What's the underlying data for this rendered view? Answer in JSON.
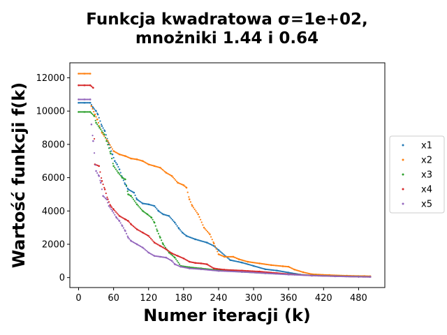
{
  "chart_data": {
    "type": "scatter",
    "title_lines": [
      "Funkcja kwadratowa σ=1e+02,",
      "mnożniki 1.44 i 0.64"
    ],
    "xlabel": "Numer iteracji (k)",
    "ylabel": "Wartość funkcji f(k)",
    "xlim": [
      -15,
      525
    ],
    "ylim": [
      -600,
      12900
    ],
    "xticks": [
      0,
      60,
      120,
      180,
      240,
      300,
      360,
      420,
      480
    ],
    "yticks": [
      0,
      2000,
      4000,
      6000,
      8000,
      10000,
      12000
    ],
    "grid": false,
    "legend_position": "right-center",
    "series": [
      {
        "name": "x1",
        "color": "#1f77b4",
        "points": [
          [
            0,
            10500
          ],
          [
            10,
            10500
          ],
          [
            20,
            10500
          ],
          [
            25,
            10200
          ],
          [
            30,
            10000
          ],
          [
            33,
            9800
          ],
          [
            40,
            9100
          ],
          [
            45,
            8800
          ],
          [
            52,
            8000
          ],
          [
            58,
            7400
          ],
          [
            62,
            7000
          ],
          [
            66,
            6800
          ],
          [
            70,
            6500
          ],
          [
            75,
            6000
          ],
          [
            80,
            5600
          ],
          [
            85,
            5300
          ],
          [
            95,
            5100
          ],
          [
            100,
            4700
          ],
          [
            110,
            4450
          ],
          [
            120,
            4400
          ],
          [
            130,
            4300
          ],
          [
            137,
            4000
          ],
          [
            145,
            3800
          ],
          [
            155,
            3700
          ],
          [
            165,
            3300
          ],
          [
            172,
            2950
          ],
          [
            178,
            2700
          ],
          [
            185,
            2500
          ],
          [
            200,
            2300
          ],
          [
            220,
            2100
          ],
          [
            232,
            1900
          ],
          [
            240,
            1650
          ],
          [
            260,
            1050
          ],
          [
            280,
            900
          ],
          [
            300,
            700
          ],
          [
            320,
            500
          ],
          [
            340,
            420
          ],
          [
            360,
            300
          ],
          [
            380,
            180
          ],
          [
            400,
            120
          ],
          [
            440,
            80
          ],
          [
            480,
            50
          ],
          [
            500,
            40
          ]
        ]
      },
      {
        "name": "x2",
        "color": "#ff7f0e",
        "points": [
          [
            0,
            12250
          ],
          [
            10,
            12250
          ],
          [
            20,
            12250
          ],
          [
            22,
            10300
          ],
          [
            28,
            9800
          ],
          [
            32,
            9500
          ],
          [
            40,
            8700
          ],
          [
            50,
            8200
          ],
          [
            60,
            7600
          ],
          [
            70,
            7400
          ],
          [
            80,
            7300
          ],
          [
            90,
            7150
          ],
          [
            100,
            7100
          ],
          [
            110,
            7000
          ],
          [
            120,
            6800
          ],
          [
            130,
            6700
          ],
          [
            140,
            6600
          ],
          [
            150,
            6300
          ],
          [
            160,
            6100
          ],
          [
            170,
            5700
          ],
          [
            180,
            5550
          ],
          [
            185,
            5400
          ],
          [
            190,
            4700
          ],
          [
            195,
            4300
          ],
          [
            205,
            3800
          ],
          [
            215,
            3000
          ],
          [
            225,
            2600
          ],
          [
            232,
            2050
          ],
          [
            240,
            1400
          ],
          [
            250,
            1250
          ],
          [
            265,
            1250
          ],
          [
            275,
            1100
          ],
          [
            290,
            950
          ],
          [
            310,
            850
          ],
          [
            330,
            750
          ],
          [
            350,
            680
          ],
          [
            360,
            650
          ],
          [
            370,
            480
          ],
          [
            385,
            320
          ],
          [
            400,
            200
          ],
          [
            430,
            150
          ],
          [
            460,
            110
          ],
          [
            490,
            90
          ],
          [
            500,
            80
          ]
        ]
      },
      {
        "name": "x3",
        "color": "#2ca02c",
        "points": [
          [
            0,
            9950
          ],
          [
            10,
            9950
          ],
          [
            20,
            9950
          ],
          [
            27,
            9700
          ],
          [
            30,
            9300
          ],
          [
            36,
            9000
          ],
          [
            44,
            8600
          ],
          [
            48,
            8200
          ],
          [
            55,
            7450
          ],
          [
            60,
            6700
          ],
          [
            68,
            6300
          ],
          [
            75,
            6000
          ],
          [
            80,
            5900
          ],
          [
            85,
            5000
          ],
          [
            90,
            4900
          ],
          [
            100,
            4400
          ],
          [
            110,
            4000
          ],
          [
            118,
            3800
          ],
          [
            125,
            3600
          ],
          [
            130,
            3300
          ],
          [
            135,
            2800
          ],
          [
            140,
            2400
          ],
          [
            145,
            2000
          ],
          [
            155,
            1500
          ],
          [
            165,
            1200
          ],
          [
            175,
            700
          ],
          [
            190,
            620
          ],
          [
            210,
            550
          ],
          [
            240,
            440
          ],
          [
            280,
            340
          ],
          [
            320,
            260
          ],
          [
            360,
            190
          ],
          [
            400,
            130
          ],
          [
            440,
            90
          ],
          [
            480,
            60
          ],
          [
            500,
            50
          ]
        ]
      },
      {
        "name": "x4",
        "color": "#d62728",
        "points": [
          [
            0,
            11550
          ],
          [
            10,
            11550
          ],
          [
            20,
            11550
          ],
          [
            25,
            11400
          ],
          [
            28,
            6800
          ],
          [
            35,
            6700
          ],
          [
            40,
            5800
          ],
          [
            45,
            5300
          ],
          [
            50,
            4700
          ],
          [
            55,
            4300
          ],
          [
            60,
            4100
          ],
          [
            70,
            3700
          ],
          [
            80,
            3500
          ],
          [
            85,
            3400
          ],
          [
            90,
            3200
          ],
          [
            100,
            2900
          ],
          [
            110,
            2700
          ],
          [
            120,
            2500
          ],
          [
            130,
            2100
          ],
          [
            140,
            1900
          ],
          [
            150,
            1700
          ],
          [
            160,
            1450
          ],
          [
            170,
            1300
          ],
          [
            180,
            1150
          ],
          [
            190,
            950
          ],
          [
            200,
            880
          ],
          [
            210,
            850
          ],
          [
            220,
            800
          ],
          [
            232,
            550
          ],
          [
            250,
            470
          ],
          [
            280,
            420
          ],
          [
            310,
            360
          ],
          [
            340,
            270
          ],
          [
            370,
            180
          ],
          [
            400,
            120
          ],
          [
            440,
            80
          ],
          [
            480,
            50
          ],
          [
            500,
            40
          ]
        ]
      },
      {
        "name": "x5",
        "color": "#9467bd",
        "points": [
          [
            0,
            10700
          ],
          [
            10,
            10700
          ],
          [
            20,
            10700
          ],
          [
            22,
            9200
          ],
          [
            25,
            8200
          ],
          [
            30,
            6400
          ],
          [
            35,
            6100
          ],
          [
            38,
            5700
          ],
          [
            42,
            4900
          ],
          [
            48,
            4700
          ],
          [
            52,
            4300
          ],
          [
            58,
            4000
          ],
          [
            65,
            3600
          ],
          [
            70,
            3400
          ],
          [
            75,
            3100
          ],
          [
            80,
            2800
          ],
          [
            85,
            2400
          ],
          [
            90,
            2200
          ],
          [
            100,
            2000
          ],
          [
            110,
            1800
          ],
          [
            120,
            1500
          ],
          [
            130,
            1300
          ],
          [
            140,
            1250
          ],
          [
            150,
            1200
          ],
          [
            160,
            1000
          ],
          [
            165,
            800
          ],
          [
            175,
            650
          ],
          [
            190,
            550
          ],
          [
            210,
            500
          ],
          [
            240,
            400
          ],
          [
            280,
            340
          ],
          [
            320,
            260
          ],
          [
            360,
            180
          ],
          [
            400,
            120
          ],
          [
            440,
            80
          ],
          [
            480,
            50
          ],
          [
            500,
            40
          ]
        ]
      }
    ]
  }
}
